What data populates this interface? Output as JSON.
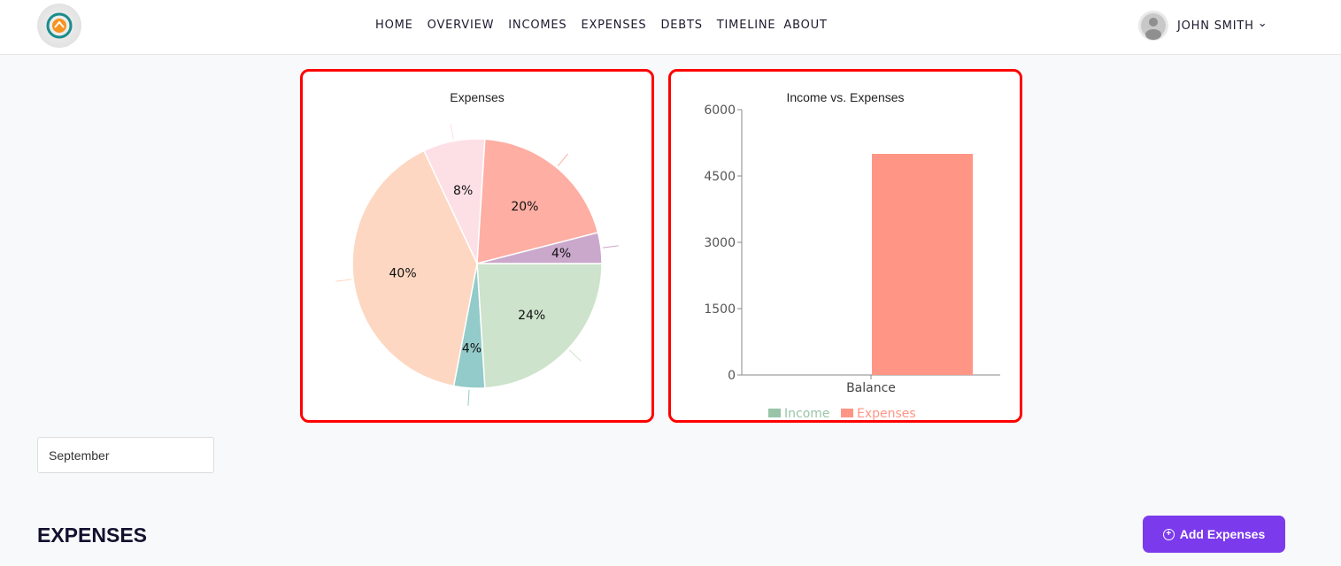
{
  "nav": {
    "items": [
      "HOME",
      "OVERVIEW",
      "INCOMES",
      "EXPENSES",
      "DEBTS",
      "TIMELINE",
      "ABOUT"
    ],
    "user": "JOHN SMITH"
  },
  "filter": {
    "month": "September"
  },
  "section": {
    "title": "EXPENSES",
    "add_label": "Add Expenses"
  },
  "chart_data": [
    {
      "type": "pie",
      "title": "Expenses",
      "values": [
        24,
        4,
        40,
        8,
        20,
        4
      ],
      "labels": [
        "24%",
        "4%",
        "40%",
        "8%",
        "20%",
        "4%"
      ],
      "colors": [
        "#cde3cb",
        "#92cbc9",
        "#fdd7c1",
        "#fde0e6",
        "#feaea3",
        "#caa8cb"
      ]
    },
    {
      "type": "bar",
      "title": "Income vs. Expenses",
      "categories": [
        "Balance"
      ],
      "series": [
        {
          "name": "Income",
          "values": [
            0
          ],
          "color": "#99c4a8"
        },
        {
          "name": "Expenses",
          "values": [
            5000
          ],
          "color": "#ff9585"
        }
      ],
      "ylim": [
        0,
        6000
      ],
      "yticks": [
        0,
        1500,
        3000,
        4500,
        6000
      ]
    }
  ]
}
